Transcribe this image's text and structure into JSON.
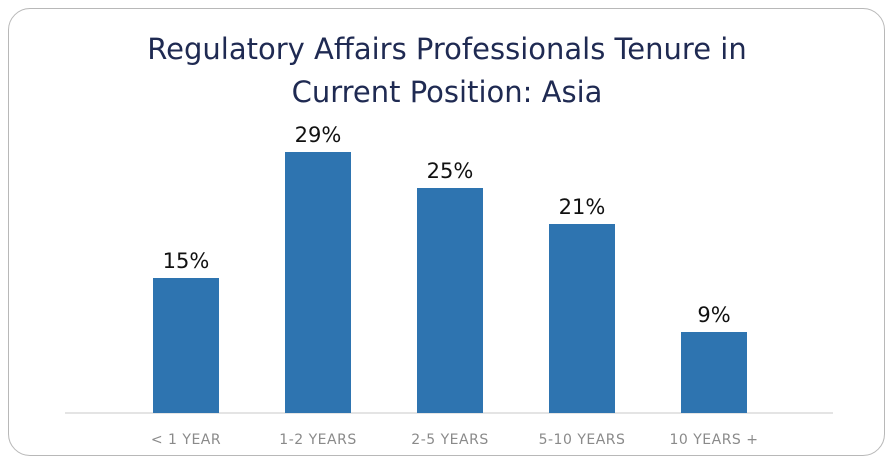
{
  "chart_data": {
    "type": "bar",
    "title": "Regulatory Affairs Professionals Tenure in Current Position: Asia",
    "categories": [
      "< 1 YEAR",
      "1-2 YEARS",
      "2-5 YEARS",
      "5-10 YEARS",
      "10 YEARS +"
    ],
    "values": [
      15,
      29,
      25,
      21,
      9
    ],
    "value_labels": [
      "15%",
      "29%",
      "25%",
      "21%",
      "9%"
    ],
    "color": "#2e74b0"
  }
}
